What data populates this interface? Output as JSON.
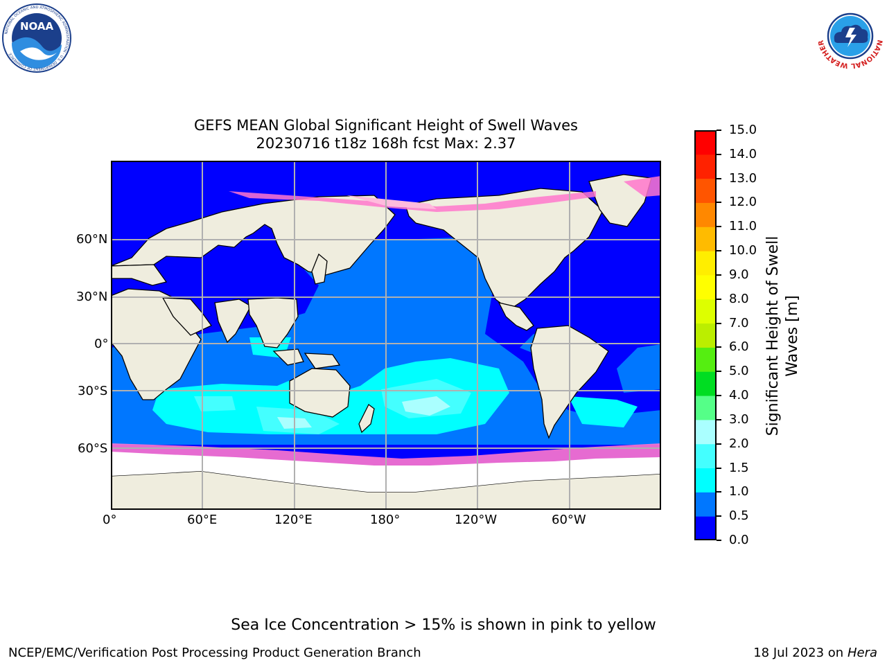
{
  "title": {
    "line1": "GEFS MEAN Global Significant Height of Swell Waves",
    "line2": "20230716 t18z 168h fcst   Max: 2.37"
  },
  "logos": {
    "left": "NOAA",
    "left_ring": "NATIONAL OCEANIC AND ATMOSPHERIC ADMINISTRATION · U.S. DEPARTMENT OF COMMERCE",
    "right_ring": "NATIONAL WEATHER SERVICE"
  },
  "map": {
    "lat_labels": [
      "60°N",
      "30°N",
      "0°",
      "30°S",
      "60°S"
    ],
    "lon_labels": [
      "0°",
      "60°E",
      "120°E",
      "180°",
      "120°W",
      "60°W"
    ],
    "colors": {
      "ocean_0_05": "#0000ff",
      "ocean_05_10": "#0077ff",
      "ocean_10_15": "#00ffff",
      "ocean_15_20": "#44ffff",
      "ocean_20_30": "#aaffff",
      "land": "#efedde",
      "ice_edge": "#ff77cc",
      "ice": "#ffffff",
      "grid": "#b0b0b0"
    }
  },
  "colorbar": {
    "label_line1": "Significant Height of Swell",
    "label_line2": "Waves [m]",
    "ticks": [
      "0.0",
      "0.5",
      "1.0",
      "1.5",
      "2.0",
      "3.0",
      "4.0",
      "5.0",
      "6.0",
      "7.0",
      "8.0",
      "9.0",
      "10.0",
      "11.0",
      "12.0",
      "13.0",
      "14.0",
      "15.0"
    ],
    "bin_colors": [
      "#0000ff",
      "#0077ff",
      "#00ffff",
      "#44ffff",
      "#aaffff",
      "#55ff88",
      "#00dd22",
      "#55ee11",
      "#bbee00",
      "#ddff00",
      "#ffff00",
      "#ffee00",
      "#ffbb00",
      "#ff8800",
      "#ff5500",
      "#ff2200",
      "#ff0000"
    ]
  },
  "caption": "Sea Ice Concentration > 15% is shown in pink to yellow",
  "footer": {
    "left": "NCEP/EMC/Verification Post Processing Product Generation Branch",
    "right_date": "18 Jul 2023 on ",
    "right_machine": "Hera"
  }
}
